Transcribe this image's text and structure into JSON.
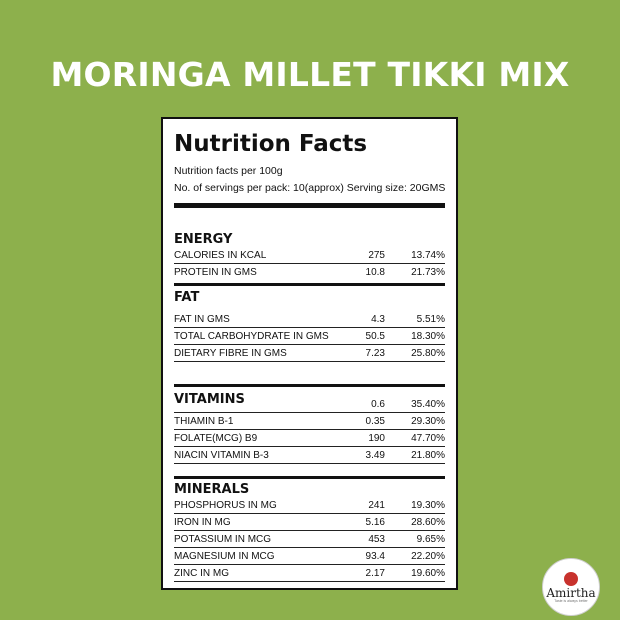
{
  "headline": "MORINGA MILLET TIKKI MIX",
  "panel": {
    "title": "Nutrition Facts",
    "per": "Nutrition facts per 100g",
    "servings": "No. of servings per pack: 10(approx) Serving size: 20GMS"
  },
  "energy": {
    "title": "ENERGY",
    "rows": [
      {
        "name": "CALORIES IN KCAL",
        "value": "275",
        "pct": "13.74%"
      },
      {
        "name": "PROTEIN IN GMS",
        "value": "10.8",
        "pct": "21.73%"
      }
    ]
  },
  "fat": {
    "title": "FAT",
    "rows": [
      {
        "name": "FAT IN GMS",
        "value": "4.3",
        "pct": "5.51%"
      },
      {
        "name": "TOTAL CARBOHYDRATE IN GMS",
        "value": "50.5",
        "pct": "18.30%"
      },
      {
        "name": "DIETARY FIBRE IN GMS",
        "value": "7.23",
        "pct": "25.80%"
      }
    ]
  },
  "vitamins": {
    "title": "VITAMINS",
    "rows": [
      {
        "name": "",
        "value": "0.6",
        "pct": "35.40%"
      },
      {
        "name": "THIAMIN B-1",
        "value": "0.35",
        "pct": "29.30%"
      },
      {
        "name": "FOLATE(MCG) B9",
        "value": "190",
        "pct": "47.70%"
      },
      {
        "name": "NIACIN VITAMIN B-3",
        "value": "3.49",
        "pct": "21.80%"
      }
    ]
  },
  "minerals": {
    "title": "MINERALS",
    "rows": [
      {
        "name": "PHOSPHORUS IN MG",
        "value": "241",
        "pct": "19.30%"
      },
      {
        "name": "IRON IN MG",
        "value": "5.16",
        "pct": "28.60%"
      },
      {
        "name": "POTASSIUM IN MCG",
        "value": "453",
        "pct": "9.65%"
      },
      {
        "name": "MAGNESIUM IN MCG",
        "value": "93.4",
        "pct": "22.20%"
      },
      {
        "name": "ZINC IN MG",
        "value": "2.17",
        "pct": "19.60%"
      }
    ]
  },
  "logo": {
    "word": "Amirtha",
    "tag": "Taste is always better"
  }
}
